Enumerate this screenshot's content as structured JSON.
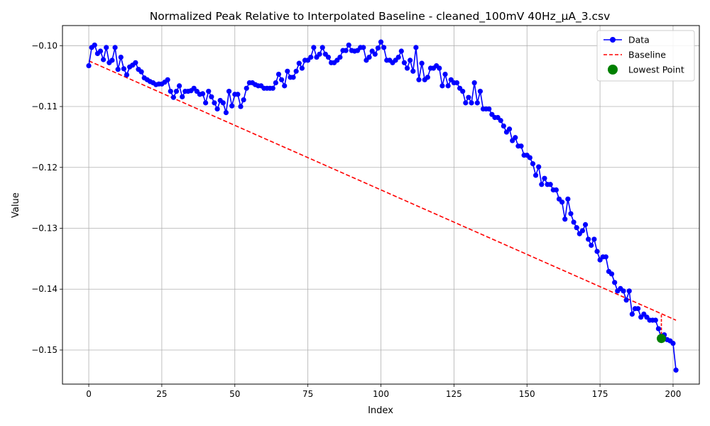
{
  "chart_data": {
    "type": "line",
    "title": "Normalized Peak Relative to Interpolated Baseline - cleaned_100mV 40Hz_µA_3.csv",
    "xlabel": "Index",
    "ylabel": "Value",
    "xlim": [
      -9,
      209
    ],
    "ylim": [
      -0.1556,
      -0.0967
    ],
    "xticks": [
      0,
      25,
      50,
      75,
      100,
      125,
      150,
      175,
      200
    ],
    "xtick_labels": [
      "0",
      "25",
      "50",
      "75",
      "100",
      "125",
      "150",
      "175",
      "200"
    ],
    "yticks": [
      -0.15,
      -0.14,
      -0.13,
      -0.12,
      -0.11,
      -0.1
    ],
    "ytick_labels": [
      "−0.15",
      "−0.14",
      "−0.13",
      "−0.12",
      "−0.11",
      "−0.10"
    ],
    "grid": true,
    "legend_position": "top-right",
    "series": [
      {
        "name": "Data",
        "color": "#0000ff",
        "style": "line-with-circle-markers",
        "values": [
          -0.1033,
          -0.1003,
          -0.0999,
          -0.1013,
          -0.1009,
          -0.1023,
          -0.1003,
          -0.1028,
          -0.1024,
          -0.1003,
          -0.1039,
          -0.1019,
          -0.1038,
          -0.1048,
          -0.1035,
          -0.1032,
          -0.1028,
          -0.1039,
          -0.1043,
          -0.1053,
          -0.1056,
          -0.1059,
          -0.1061,
          -0.1064,
          -0.1063,
          -0.1063,
          -0.106,
          -0.1056,
          -0.1075,
          -0.1085,
          -0.1075,
          -0.1066,
          -0.1084,
          -0.1075,
          -0.1075,
          -0.1074,
          -0.107,
          -0.1075,
          -0.108,
          -0.1079,
          -0.1094,
          -0.1075,
          -0.1084,
          -0.1094,
          -0.1104,
          -0.109,
          -0.1094,
          -0.111,
          -0.1075,
          -0.1099,
          -0.108,
          -0.108,
          -0.11,
          -0.1089,
          -0.107,
          -0.1061,
          -0.1061,
          -0.1064,
          -0.1066,
          -0.1066,
          -0.107,
          -0.107,
          -0.107,
          -0.107,
          -0.1061,
          -0.1047,
          -0.1056,
          -0.1066,
          -0.1042,
          -0.1052,
          -0.1052,
          -0.1042,
          -0.1029,
          -0.1037,
          -0.1024,
          -0.1024,
          -0.1019,
          -0.1003,
          -0.1019,
          -0.1014,
          -0.1003,
          -0.1014,
          -0.1019,
          -0.1028,
          -0.1028,
          -0.1024,
          -0.1019,
          -0.1008,
          -0.1008,
          -0.0999,
          -0.1008,
          -0.1009,
          -0.1008,
          -0.1003,
          -0.1003,
          -0.1024,
          -0.1019,
          -0.1009,
          -0.1014,
          -0.1004,
          -0.0994,
          -0.1003,
          -0.1024,
          -0.1024,
          -0.1028,
          -0.1024,
          -0.1019,
          -0.1009,
          -0.1028,
          -0.1037,
          -0.1024,
          -0.1042,
          -0.1003,
          -0.1056,
          -0.1029,
          -0.1056,
          -0.1052,
          -0.1037,
          -0.1037,
          -0.1033,
          -0.1037,
          -0.1066,
          -0.1047,
          -0.1066,
          -0.1056,
          -0.1061,
          -0.1061,
          -0.107,
          -0.1075,
          -0.1094,
          -0.1085,
          -0.1094,
          -0.1061,
          -0.1094,
          -0.1075,
          -0.1104,
          -0.1104,
          -0.1104,
          -0.1113,
          -0.1118,
          -0.1118,
          -0.1123,
          -0.1132,
          -0.1142,
          -0.1137,
          -0.1156,
          -0.1151,
          -0.1165,
          -0.1165,
          -0.118,
          -0.118,
          -0.1184,
          -0.1194,
          -0.1213,
          -0.1199,
          -0.1228,
          -0.1218,
          -0.1228,
          -0.1228,
          -0.1237,
          -0.1237,
          -0.1252,
          -0.1257,
          -0.1285,
          -0.1252,
          -0.1276,
          -0.129,
          -0.1299,
          -0.1309,
          -0.1304,
          -0.1294,
          -0.1318,
          -0.1328,
          -0.1318,
          -0.1338,
          -0.1352,
          -0.1347,
          -0.1347,
          -0.1371,
          -0.1375,
          -0.1389,
          -0.1403,
          -0.1399,
          -0.1403,
          -0.1418,
          -0.1403,
          -0.1441,
          -0.1432,
          -0.1432,
          -0.1446,
          -0.1441,
          -0.1446,
          -0.1451,
          -0.1451,
          -0.1451,
          -0.1465,
          -0.148,
          -0.1475,
          -0.1483,
          -0.1485,
          -0.1489,
          -0.1533
        ]
      },
      {
        "name": "Baseline",
        "color": "#ff0000",
        "style": "dashed",
        "x": [
          0,
          201
        ],
        "values": [
          -0.1025,
          -0.1451
        ]
      },
      {
        "name": "Lowest Point",
        "color": "#008000",
        "style": "marker",
        "x": [
          196
        ],
        "values": [
          -0.1481
        ]
      }
    ],
    "peak_drop_marker": {
      "x": 196,
      "from": -0.1442,
      "to": -0.1481,
      "color": "#ff0000"
    }
  }
}
